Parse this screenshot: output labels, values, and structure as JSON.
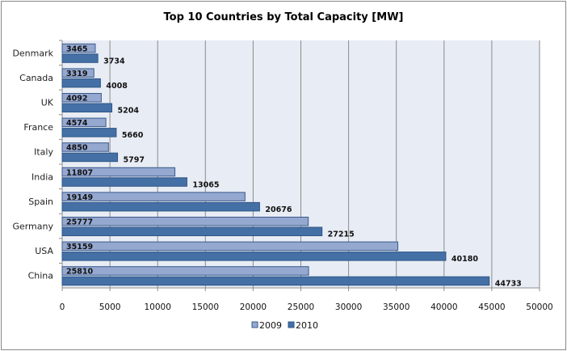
{
  "chart_data": {
    "type": "bar",
    "orientation": "horizontal",
    "title": "Top 10 Countries by Total Capacity [MW]",
    "xlabel": "",
    "ylabel": "",
    "categories": [
      "Denmark",
      "Canada",
      "UK",
      "France",
      "Italy",
      "India",
      "Spain",
      "Germany",
      "USA",
      "China"
    ],
    "series": [
      {
        "name": "2009",
        "color": "#95A8D0",
        "border": "#3A5A8C",
        "values": [
          3465,
          3319,
          4092,
          4574,
          4850,
          11807,
          19149,
          25777,
          35159,
          25810
        ]
      },
      {
        "name": "2010",
        "color": "#4470A6",
        "border": "#2F5687",
        "values": [
          3734,
          4008,
          5204,
          5660,
          5797,
          13065,
          20676,
          27215,
          40180,
          44733
        ]
      }
    ],
    "xlim": [
      0,
      50000
    ],
    "xticks": [
      "0",
      "5000",
      "10000",
      "15000",
      "20000",
      "25000",
      "30000",
      "35000",
      "40000",
      "45000",
      "50000"
    ],
    "grid": true,
    "legend": "bottom",
    "plot_background": "#E8ECF4"
  }
}
